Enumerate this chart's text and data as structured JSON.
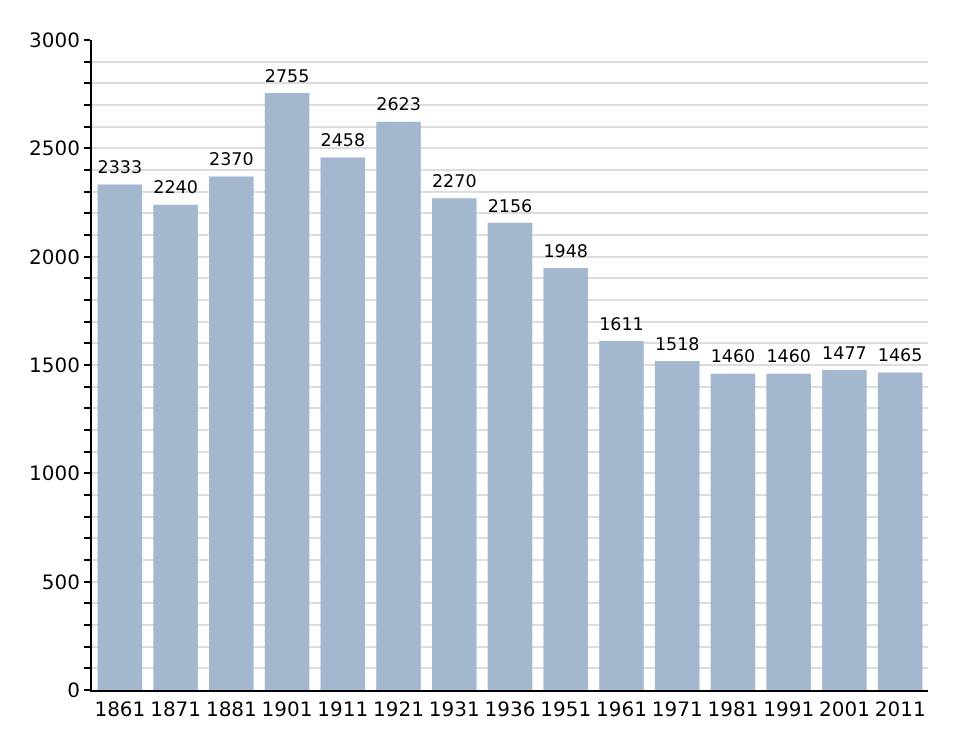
{
  "chart_data": {
    "type": "bar",
    "categories": [
      "1861",
      "1871",
      "1881",
      "1901",
      "1911",
      "1921",
      "1931",
      "1936",
      "1951",
      "1961",
      "1971",
      "1981",
      "1991",
      "2001",
      "2011"
    ],
    "values": [
      2333,
      2240,
      2370,
      2755,
      2458,
      2623,
      2270,
      2156,
      1948,
      1611,
      1518,
      1460,
      1460,
      1477,
      1465
    ],
    "color": "#a3b7cf",
    "ylim": [
      0,
      3000
    ],
    "yticks": [
      0,
      {
        "value": 100,
        "label": null
      },
      {
        "value": 200,
        "label": null
      },
      {
        "value": 300,
        "label": null
      },
      {
        "value": 400,
        "label": null
      },
      500,
      {
        "value": 600,
        "label": null
      },
      {
        "value": 700,
        "label": null
      },
      {
        "value": 800,
        "label": null
      },
      {
        "value": 900,
        "label": null
      },
      1000,
      {
        "value": 1100,
        "label": null
      },
      {
        "value": 1200,
        "label": null
      },
      {
        "value": 1300,
        "label": null
      },
      {
        "value": 1400,
        "label": null
      },
      1500,
      {
        "value": 1600,
        "label": null
      },
      {
        "value": 1700,
        "label": null
      },
      {
        "value": 1800,
        "label": null
      },
      {
        "value": 1900,
        "label": null
      },
      2000,
      {
        "value": 2100,
        "label": null
      },
      {
        "value": 2200,
        "label": null
      },
      {
        "value": 2300,
        "label": null
      },
      {
        "value": 2400,
        "label": null
      },
      2500,
      {
        "value": 2600,
        "label": null
      },
      {
        "value": 2700,
        "label": null
      },
      {
        "value": 2800,
        "label": null
      },
      {
        "value": 2900,
        "label": null
      },
      3000
    ],
    "grid": "y",
    "data_labels": true
  }
}
